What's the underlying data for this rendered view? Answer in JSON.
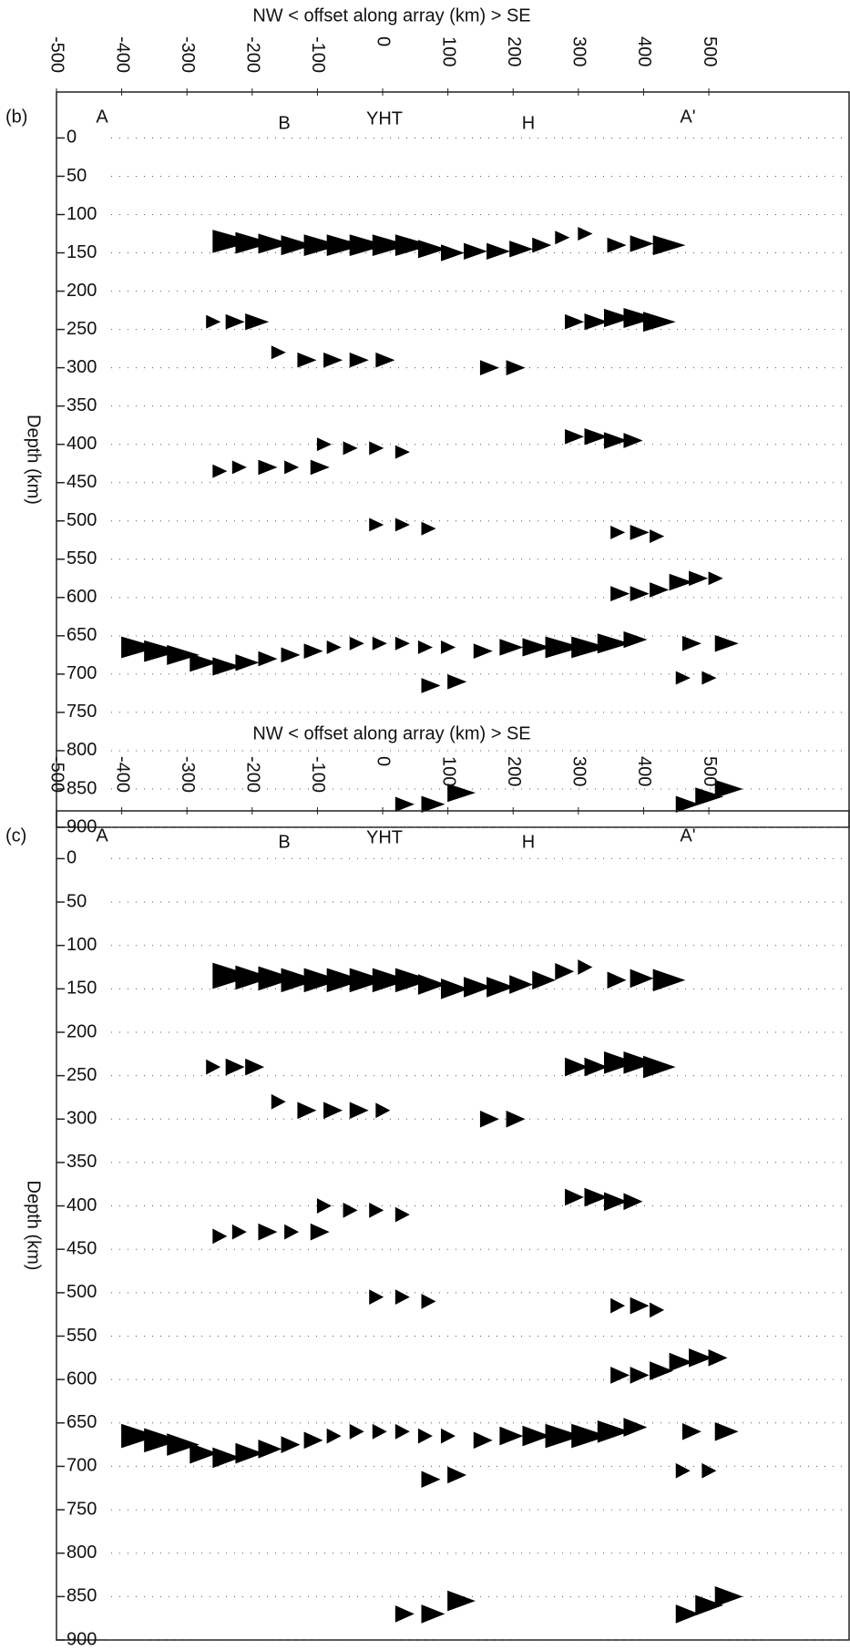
{
  "chart_data": [
    {
      "type": "wiggle",
      "panel_label": "(b)",
      "title": "NW  < offset along array (km) >  SE",
      "ylabel": "Depth (km)",
      "annotations": [
        "A",
        "B",
        "YHT",
        "H",
        "A'"
      ],
      "xlim": [
        -500,
        715
      ],
      "xticks": [
        -500,
        -400,
        -300,
        -200,
        -100,
        0,
        100,
        200,
        300,
        400,
        500
      ],
      "ylim": [
        -60,
        900
      ],
      "yticks": [
        0,
        50,
        100,
        150,
        200,
        250,
        300,
        350,
        400,
        450,
        500,
        550,
        600,
        650,
        700,
        750,
        800,
        850,
        900
      ],
      "grid": true,
      "color": "#000000",
      "x": [
        -260,
        -225,
        -190,
        -155,
        -120,
        -85,
        -50,
        -15,
        20,
        55,
        90,
        125,
        160,
        195,
        230,
        265,
        300,
        345,
        380,
        415,
        -270,
        -240,
        -210,
        280,
        310,
        340,
        370,
        400,
        -170,
        -130,
        -90,
        -50,
        -10,
        150,
        190,
        -100,
        -60,
        -20,
        20,
        280,
        310,
        340,
        370,
        -260,
        -230,
        -190,
        -150,
        -110,
        -20,
        20,
        60,
        350,
        380,
        410,
        350,
        380,
        410,
        440,
        470,
        500,
        -400,
        -365,
        -330,
        -295,
        -260,
        -225,
        -190,
        -155,
        -120,
        -85,
        -50,
        -15,
        20,
        55,
        90,
        140,
        180,
        215,
        250,
        290,
        330,
        370,
        460,
        510,
        60,
        100,
        450,
        490,
        20,
        60,
        100,
        450,
        480,
        510
      ],
      "y": [
        135,
        137,
        138,
        140,
        140,
        140,
        140,
        140,
        140,
        145,
        150,
        148,
        148,
        145,
        140,
        130,
        125,
        140,
        138,
        140,
        240,
        240,
        240,
        240,
        240,
        235,
        235,
        240,
        280,
        290,
        290,
        290,
        290,
        300,
        300,
        400,
        405,
        405,
        410,
        390,
        390,
        395,
        395,
        435,
        430,
        430,
        430,
        430,
        505,
        505,
        510,
        515,
        515,
        520,
        595,
        595,
        590,
        580,
        575,
        575,
        665,
        670,
        675,
        685,
        690,
        685,
        680,
        675,
        670,
        665,
        660,
        660,
        660,
        665,
        665,
        670,
        665,
        665,
        665,
        665,
        660,
        655,
        660,
        660,
        715,
        710,
        705,
        705,
        870,
        870,
        855,
        870,
        860,
        850
      ],
      "values": [
        0.9,
        0.8,
        0.7,
        0.7,
        0.8,
        0.8,
        0.8,
        0.8,
        0.8,
        0.6,
        0.5,
        0.5,
        0.5,
        0.5,
        0.4,
        0.3,
        0.3,
        0.4,
        0.5,
        0.7,
        0.3,
        0.4,
        0.5,
        0.4,
        0.5,
        0.6,
        0.7,
        0.7,
        0.3,
        0.4,
        0.4,
        0.4,
        0.4,
        0.4,
        0.4,
        0.3,
        0.3,
        0.3,
        0.3,
        0.4,
        0.5,
        0.5,
        0.4,
        0.3,
        0.3,
        0.4,
        0.3,
        0.4,
        0.3,
        0.3,
        0.3,
        0.3,
        0.4,
        0.3,
        0.4,
        0.4,
        0.4,
        0.5,
        0.4,
        0.3,
        0.8,
        0.8,
        0.7,
        0.6,
        0.6,
        0.5,
        0.4,
        0.4,
        0.4,
        0.3,
        0.3,
        0.3,
        0.3,
        0.3,
        0.3,
        0.4,
        0.5,
        0.6,
        0.8,
        0.8,
        0.7,
        0.5,
        0.4,
        0.5,
        0.4,
        0.4,
        0.3,
        0.3,
        0.4,
        0.5,
        0.6,
        0.5,
        0.6,
        0.6
      ]
    },
    {
      "type": "wiggle",
      "panel_label": "(c)",
      "title": "NW  < offset along array (km) >  SE",
      "ylabel": "Depth (km)",
      "annotations": [
        "A",
        "B",
        "YHT",
        "H",
        "A'"
      ],
      "xlim": [
        -500,
        715
      ],
      "xticks": [
        -500,
        -400,
        -300,
        -200,
        -100,
        0,
        100,
        200,
        300,
        400,
        500
      ],
      "ylim": [
        -55,
        900
      ],
      "yticks": [
        0,
        50,
        100,
        150,
        200,
        250,
        300,
        350,
        400,
        450,
        500,
        550,
        600,
        650,
        700,
        750,
        800,
        850,
        900
      ],
      "grid": true,
      "color": "#000000",
      "x": [
        -260,
        -225,
        -190,
        -155,
        -120,
        -85,
        -50,
        -15,
        20,
        55,
        90,
        125,
        160,
        195,
        230,
        265,
        300,
        345,
        380,
        415,
        -270,
        -240,
        -210,
        280,
        310,
        340,
        370,
        400,
        -170,
        -130,
        -90,
        -50,
        -10,
        150,
        190,
        -100,
        -60,
        -20,
        20,
        280,
        310,
        340,
        370,
        -260,
        -230,
        -190,
        -150,
        -110,
        -20,
        20,
        60,
        350,
        380,
        410,
        350,
        380,
        410,
        440,
        470,
        500,
        -400,
        -365,
        -330,
        -295,
        -260,
        -225,
        -190,
        -155,
        -120,
        -85,
        -50,
        -15,
        20,
        55,
        90,
        140,
        180,
        215,
        250,
        290,
        330,
        370,
        460,
        510,
        60,
        100,
        450,
        490,
        20,
        60,
        100,
        450,
        480,
        510
      ],
      "y": [
        135,
        137,
        138,
        140,
        140,
        140,
        140,
        140,
        140,
        145,
        150,
        148,
        148,
        145,
        140,
        130,
        125,
        140,
        138,
        140,
        240,
        240,
        240,
        240,
        240,
        235,
        235,
        240,
        280,
        290,
        290,
        290,
        290,
        300,
        300,
        400,
        405,
        405,
        410,
        390,
        390,
        395,
        395,
        435,
        430,
        430,
        430,
        430,
        505,
        505,
        510,
        515,
        515,
        520,
        595,
        595,
        590,
        580,
        575,
        575,
        665,
        670,
        675,
        685,
        690,
        685,
        680,
        675,
        670,
        665,
        660,
        660,
        660,
        665,
        665,
        670,
        665,
        665,
        665,
        665,
        660,
        655,
        660,
        660,
        715,
        710,
        705,
        705,
        870,
        870,
        855,
        870,
        860,
        850
      ],
      "values": [
        0.9,
        0.8,
        0.8,
        0.8,
        0.8,
        0.8,
        0.8,
        0.8,
        0.8,
        0.6,
        0.6,
        0.6,
        0.6,
        0.5,
        0.5,
        0.4,
        0.3,
        0.4,
        0.5,
        0.7,
        0.3,
        0.4,
        0.4,
        0.5,
        0.5,
        0.7,
        0.7,
        0.7,
        0.3,
        0.4,
        0.4,
        0.4,
        0.3,
        0.4,
        0.4,
        0.3,
        0.3,
        0.3,
        0.3,
        0.4,
        0.5,
        0.5,
        0.4,
        0.3,
        0.3,
        0.4,
        0.3,
        0.4,
        0.3,
        0.3,
        0.3,
        0.3,
        0.4,
        0.3,
        0.4,
        0.4,
        0.5,
        0.5,
        0.5,
        0.4,
        0.8,
        0.8,
        0.7,
        0.6,
        0.6,
        0.6,
        0.5,
        0.4,
        0.4,
        0.3,
        0.3,
        0.3,
        0.3,
        0.3,
        0.3,
        0.4,
        0.5,
        0.6,
        0.8,
        0.8,
        0.7,
        0.5,
        0.4,
        0.5,
        0.4,
        0.4,
        0.3,
        0.3,
        0.4,
        0.5,
        0.6,
        0.5,
        0.6,
        0.6
      ]
    }
  ]
}
